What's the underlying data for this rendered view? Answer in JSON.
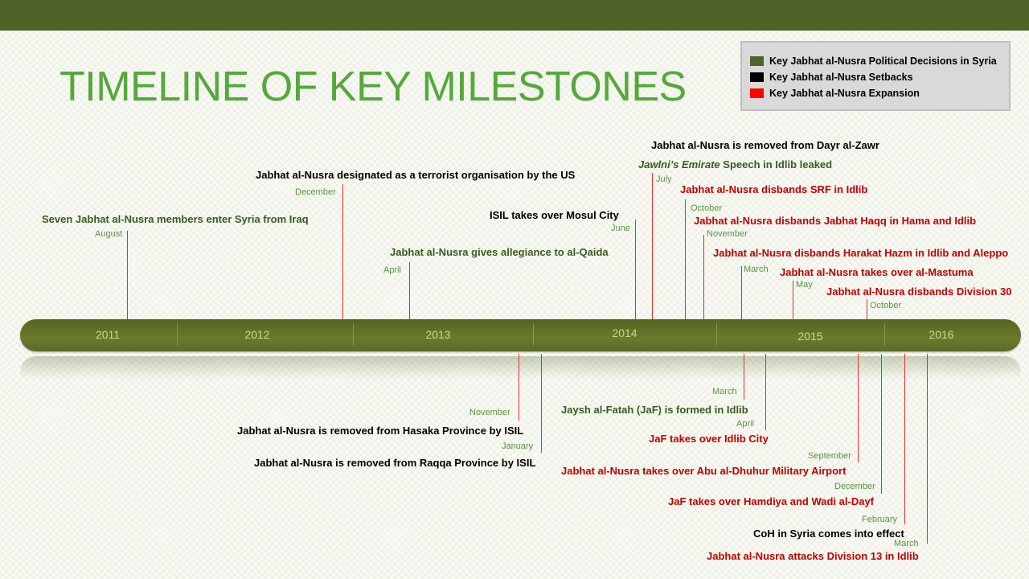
{
  "title": "TIMELINE OF KEY MILESTONES",
  "colors": {
    "political": "#4f6228",
    "setback": "#000000",
    "expansion": "#ff0000",
    "political_text": "#3b5a1f",
    "expansion_text": "#c00000",
    "title": "#55a83c"
  },
  "legend": [
    {
      "label": "Key Jabhat al-Nusra Political Decisions in Syria",
      "color": "#4f6228"
    },
    {
      "label": "Key Jabhat al-Nusra Setbacks",
      "color": "#000000"
    },
    {
      "label": "Key Jabhat al-Nusra Expansion",
      "color": "#ff0000"
    }
  ],
  "years": [
    "2011",
    "2012",
    "2013",
    "2014",
    "2015",
    "2016"
  ],
  "events": [
    {
      "text": "Seven Jabhat al-Nusra members enter Syria from Iraq",
      "month": "August",
      "category": "political"
    },
    {
      "text": "Jabhat al-Nusra designated as a terrorist organisation by the US",
      "month": "December",
      "category": "setback"
    },
    {
      "text": "Jabhat al-Nusra gives allegiance to al-Qaida",
      "month": "April",
      "category": "political"
    },
    {
      "text": "ISIL takes over Mosul City",
      "month": "June",
      "category": "setback"
    },
    {
      "text": "Jabhat al-Nusra is removed from Dayr al-Zawr",
      "month": "",
      "category": "setback"
    },
    {
      "italic": "Jawlni’s Emirate",
      "text": " Speech in Idlib leaked",
      "month": "July",
      "category": "political"
    },
    {
      "text": "Jabhat al-Nusra disbands SRF in Idlib",
      "month": "October",
      "category": "expansion"
    },
    {
      "text": "Jabhat al-Nusra  disbands Jabhat Haqq in Hama and Idlib",
      "month": "November",
      "category": "expansion"
    },
    {
      "text": "Jabhat al-Nusra disbands Harakat Hazm in Idlib and Aleppo",
      "month": "March",
      "category": "expansion"
    },
    {
      "text": "Jabhat al-Nusra takes over al-Mastuma",
      "month": "May",
      "category": "expansion"
    },
    {
      "text": "Jabhat al-Nusra disbands Division 30",
      "month": "October",
      "category": "expansion"
    },
    {
      "text": "Jabhat al-Nusra is removed from Hasaka Province by ISIL",
      "month": "November",
      "category": "setback"
    },
    {
      "text": "Jabhat al-Nusra is removed from Raqqa Province by ISIL",
      "month": "January",
      "category": "setback"
    },
    {
      "text": "Jaysh al-Fatah (JaF) is formed in Idlib",
      "month": "March",
      "category": "political"
    },
    {
      "text": "JaF takes over Idlib City",
      "month": "April",
      "category": "expansion"
    },
    {
      "text": "Jabhat al-Nusra takes over Abu al-Dhuhur Military Airport",
      "month": "September",
      "category": "expansion"
    },
    {
      "text": "JaF takes over Hamdiya and Wadi al-Dayf",
      "month": "December",
      "category": "expansion"
    },
    {
      "text": "CoH in Syria comes into effect",
      "month": "February",
      "category": "setback"
    },
    {
      "text": "Jabhat al-Nusra attacks Division 13 in Idlib",
      "month": "March",
      "category": "expansion"
    }
  ]
}
